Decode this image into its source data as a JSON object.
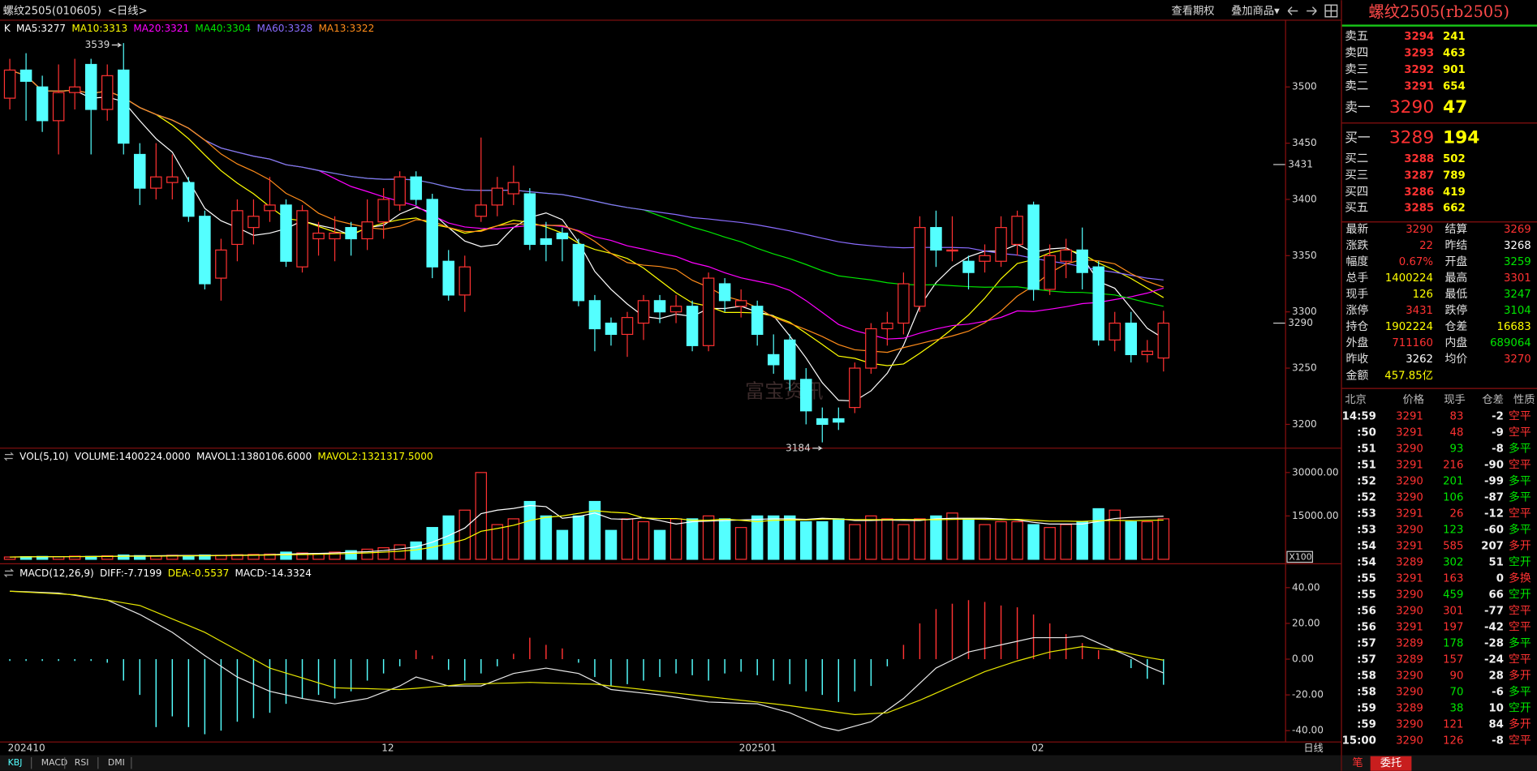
{
  "header": {
    "title": "螺纹2505(010605)",
    "period": "<日线>",
    "buttons": [
      "查看期权",
      "叠加商品▾"
    ]
  },
  "chart_data": [
    {
      "type": "candlestick",
      "indicators": [
        {
          "label": "K",
          "color": "#ffffff"
        },
        {
          "label": "MA5:3277",
          "color": "#ffffff"
        },
        {
          "label": "MA10:3313",
          "color": "#ffff00"
        },
        {
          "label": "MA20:3321",
          "color": "#ff00ff"
        },
        {
          "label": "MA40:3304",
          "color": "#00e600"
        },
        {
          "label": "MA60:3328",
          "color": "#8a6cff"
        },
        {
          "label": "MA13:3322",
          "color": "#ff8c1a"
        }
      ],
      "categories": [
        "202410",
        null,
        null,
        null,
        null,
        null,
        null,
        null,
        null,
        null,
        null,
        null,
        null,
        null,
        null,
        null,
        null,
        null,
        null,
        null,
        null,
        null,
        null,
        "12",
        null,
        null,
        null,
        null,
        null,
        null,
        null,
        null,
        null,
        null,
        null,
        null,
        null,
        null,
        null,
        null,
        null,
        null,
        null,
        null,
        null,
        "202501",
        null,
        null,
        null,
        null,
        null,
        null,
        null,
        null,
        null,
        null,
        null,
        null,
        null,
        null,
        null,
        null,
        null,
        "02",
        null,
        null,
        null,
        null,
        null,
        null,
        null,
        null
      ],
      "open": [
        3490,
        3515,
        3500,
        3470,
        3495,
        3520,
        3480,
        3515,
        3440,
        3410,
        3415,
        3415,
        3385,
        3330,
        3360,
        3375,
        3390,
        3395,
        3340,
        3365,
        3365,
        3375,
        3365,
        3380,
        3395,
        3420,
        3400,
        3345,
        3315,
        3385,
        3395,
        3405,
        3405,
        3365,
        3370,
        3360,
        3310,
        3290,
        3280,
        3290,
        3310,
        3300,
        3305,
        3270,
        3325,
        3305,
        3305,
        3262,
        3275,
        3240,
        3205,
        3205,
        3215,
        3250,
        3285,
        3290,
        3305,
        3375,
        3355,
        3345,
        3345,
        3345,
        3360,
        3395,
        3320,
        3345,
        3355,
        3340,
        3275,
        3290,
        3262,
        3259
      ],
      "high": [
        3525,
        3530,
        3510,
        3520,
        3525,
        3525,
        3520,
        3539,
        3450,
        3450,
        3440,
        3420,
        3390,
        3365,
        3400,
        3400,
        3420,
        3400,
        3395,
        3380,
        3385,
        3380,
        3400,
        3410,
        3425,
        3425,
        3405,
        3355,
        3350,
        3455,
        3420,
        3430,
        3410,
        3380,
        3375,
        3365,
        3315,
        3295,
        3300,
        3315,
        3315,
        3315,
        3310,
        3335,
        3330,
        3320,
        3310,
        3280,
        3280,
        3250,
        3215,
        3215,
        3255,
        3290,
        3300,
        3335,
        3385,
        3390,
        3385,
        3350,
        3360,
        3385,
        3390,
        3398,
        3360,
        3365,
        3375,
        3345,
        3300,
        3300,
        3275,
        3301
      ],
      "low": [
        3480,
        3470,
        3460,
        3440,
        3480,
        3440,
        3470,
        3440,
        3395,
        3400,
        3400,
        3380,
        3320,
        3310,
        3345,
        3360,
        3380,
        3340,
        3335,
        3350,
        3345,
        3350,
        3355,
        3365,
        3390,
        3395,
        3330,
        3310,
        3300,
        3380,
        3385,
        3395,
        3355,
        3345,
        3345,
        3305,
        3265,
        3270,
        3260,
        3275,
        3290,
        3290,
        3265,
        3265,
        3300,
        3295,
        3270,
        3245,
        3230,
        3200,
        3184,
        3195,
        3210,
        3245,
        3270,
        3280,
        3300,
        3340,
        3345,
        3320,
        3335,
        3340,
        3350,
        3310,
        3315,
        3330,
        3320,
        3270,
        3265,
        3255,
        3255,
        3247
      ],
      "close": [
        3515,
        3505,
        3470,
        3495,
        3500,
        3480,
        3510,
        3450,
        3410,
        3420,
        3420,
        3385,
        3325,
        3355,
        3390,
        3385,
        3395,
        3345,
        3390,
        3370,
        3370,
        3365,
        3380,
        3400,
        3420,
        3400,
        3340,
        3315,
        3340,
        3395,
        3410,
        3415,
        3360,
        3360,
        3365,
        3310,
        3285,
        3280,
        3295,
        3310,
        3300,
        3305,
        3270,
        3330,
        3310,
        3310,
        3280,
        3253,
        3240,
        3212,
        3200,
        3202,
        3250,
        3285,
        3290,
        3325,
        3375,
        3355,
        3355,
        3335,
        3350,
        3375,
        3385,
        3320,
        3350,
        3355,
        3335,
        3275,
        3290,
        3262,
        3265,
        3290
      ],
      "up_color": "#ff3232",
      "down_color": "#54ffff",
      "ylim": [
        3181,
        3558
      ],
      "yticks": [
        3200,
        3250,
        3300,
        3350,
        3400,
        3450,
        3500
      ],
      "max_label": 3539,
      "min_label": 3184,
      "price_markers": [
        3431,
        3290
      ],
      "watermark": "富宝资讯"
    },
    {
      "type": "bar",
      "indicators": [
        {
          "label": "VOL(5,10)",
          "color": "#ffffff"
        },
        {
          "label": "VOLUME:1400224.0000",
          "color": "#ffffff"
        },
        {
          "label": "MAVOL1:1380106.6000",
          "color": "#ffffff"
        },
        {
          "label": "MAVOL2:1321317.5000",
          "color": "#ffff00"
        }
      ],
      "values": [
        800,
        900,
        1000,
        900,
        1100,
        1000,
        1200,
        1500,
        1300,
        1200,
        1400,
        1300,
        1500,
        1400,
        1600,
        1700,
        1800,
        2500,
        2200,
        2000,
        2500,
        3000,
        3500,
        4000,
        5000,
        6000,
        11000,
        15000,
        17000,
        30000,
        12000,
        14000,
        20000,
        15000,
        10000,
        15000,
        20000,
        10000,
        14000,
        13000,
        10000,
        14000,
        14000,
        15000,
        14000,
        11000,
        15000,
        15000,
        15000,
        13000,
        13000,
        14000,
        12000,
        15000,
        14000,
        12000,
        14000,
        15000,
        16000,
        14000,
        12000,
        13000,
        13000,
        12000,
        11000,
        12000,
        13000,
        17500,
        17000,
        13000,
        13000,
        14002.24
      ],
      "ylim": [
        0,
        33000
      ],
      "yticks": [
        {
          "value": 15000,
          "label": "15000.00"
        },
        {
          "value": 30000,
          "label": "30000.00"
        }
      ],
      "unit_label": "X100"
    },
    {
      "type": "macd",
      "indicators": [
        {
          "label": "MACD(12,26,9)",
          "color": "#ffffff"
        },
        {
          "label": "DIFF:-7.7199",
          "color": "#ffffff"
        },
        {
          "label": "DEA:-0.5537",
          "color": "#ffff00"
        },
        {
          "label": "MACD:-14.3324",
          "color": "#ffffff"
        }
      ],
      "values": [
        -1,
        -1,
        -1,
        -1,
        -1,
        -1,
        -2,
        -12,
        -20,
        -38,
        -32,
        -38,
        -42,
        -40,
        -35,
        -33,
        -30,
        -25,
        -22,
        -20,
        -22,
        -18,
        -12,
        -8,
        -4,
        5,
        2,
        -6,
        -12,
        -8,
        -4,
        3,
        12,
        8,
        6,
        -2,
        -10,
        -15,
        -14,
        -12,
        -10,
        -8,
        -9,
        -12,
        -8,
        -7,
        -9,
        -12,
        -14,
        -18,
        -20,
        -24,
        -18,
        -15,
        -4,
        8,
        20,
        28,
        31,
        33,
        32,
        30,
        29,
        25,
        20,
        14,
        9,
        5,
        0,
        -5,
        -11,
        -14.3324
      ],
      "series": [
        {
          "name": "DIFF",
          "color": "#e8e8e8",
          "values": [
            38,
            37.7,
            37.3,
            37,
            35.7,
            34.3,
            33,
            29,
            25,
            20,
            15,
            8.5,
            2,
            -4,
            -10,
            -14,
            -18,
            -20,
            -22,
            -23.5,
            -25,
            -23.5,
            -22,
            -18.5,
            -15,
            -10,
            -12.5,
            -15,
            -15,
            -15,
            -11.5,
            -8,
            -6.5,
            -5,
            -6.5,
            -8,
            -12.5,
            -17,
            -18,
            -19,
            -20,
            -21.3,
            -22.7,
            -24,
            -24.3,
            -24.7,
            -25,
            -27.5,
            -30,
            -34,
            -38,
            -40,
            -37.5,
            -35,
            -28.5,
            -22,
            -13.5,
            -5,
            -0.5,
            4,
            6,
            8,
            10,
            12,
            12,
            12,
            13,
            9,
            5,
            1,
            -4,
            -7.7199
          ]
        },
        {
          "name": "DEA",
          "color": "#e6e600",
          "values": [
            38,
            37.5,
            37,
            36.5,
            36,
            34.5,
            33,
            31.5,
            30,
            26.3,
            22.5,
            18.8,
            15,
            10,
            5,
            0,
            -5,
            -7.8,
            -10.5,
            -13.3,
            -16,
            -16.3,
            -16.5,
            -16.8,
            -17,
            -16.3,
            -15.5,
            -14.8,
            -14,
            -13.8,
            -13.5,
            -13.3,
            -13,
            -13.3,
            -13.5,
            -13.8,
            -14,
            -15,
            -16,
            -17,
            -18,
            -19,
            -20,
            -21,
            -22,
            -23,
            -24,
            -25,
            -26,
            -27.3,
            -28.5,
            -29.8,
            -31,
            -30.5,
            -30,
            -26.5,
            -23,
            -19,
            -15,
            -11,
            -7,
            -4,
            -1,
            1.5,
            4,
            5.5,
            7,
            6,
            5,
            3,
            1,
            -0.5537
          ]
        }
      ],
      "up_color": "#ff3232",
      "down_color": "#54ffff",
      "ylim": [
        -45.5,
        52
      ],
      "yticks": [
        {
          "value": 40,
          "label": "40.00"
        },
        {
          "value": 20,
          "label": "20.00"
        },
        {
          "value": 0,
          "label": "0.00"
        },
        {
          "value": -20,
          "label": "-20.00"
        },
        {
          "value": -40,
          "label": "-40.00"
        }
      ]
    }
  ],
  "x_axis_period": "日线",
  "tabs": [
    "KBJ",
    "MACD",
    "RSI",
    "DMI"
  ],
  "quote": {
    "title": "螺纹2505(rb2505)",
    "asks": [
      {
        "label": "卖五",
        "price": 3294,
        "volume": 241
      },
      {
        "label": "卖四",
        "price": 3293,
        "volume": 463
      },
      {
        "label": "卖三",
        "price": 3292,
        "volume": 901
      },
      {
        "label": "卖二",
        "price": 3291,
        "volume": 654
      },
      {
        "label": "卖一",
        "price": 3290,
        "volume": 47
      }
    ],
    "bids": [
      {
        "label": "买一",
        "price": 3289,
        "volume": 194
      },
      {
        "label": "买二",
        "price": 3288,
        "volume": 502
      },
      {
        "label": "买三",
        "price": 3287,
        "volume": 789
      },
      {
        "label": "买四",
        "price": 3286,
        "volume": 419
      },
      {
        "label": "买五",
        "price": 3285,
        "volume": 662
      }
    ],
    "stats": [
      [
        {
          "label": "最新",
          "value": 3290,
          "color": "#ff3232"
        },
        {
          "label": "结算",
          "value": 3269,
          "color": "#ff3232"
        }
      ],
      [
        {
          "label": "涨跌",
          "value": 22,
          "color": "#ff3232"
        },
        {
          "label": "昨结",
          "value": 3268,
          "color": "#ffffff"
        }
      ],
      [
        {
          "label": "幅度",
          "value": "0.67%",
          "color": "#ff3232"
        },
        {
          "label": "开盘",
          "value": 3259,
          "color": "#00e600"
        }
      ],
      [
        {
          "label": "总手",
          "value": 1400224,
          "color": "#ffff00"
        },
        {
          "label": "最高",
          "value": 3301,
          "color": "#ff3232"
        }
      ],
      [
        {
          "label": "现手",
          "value": 126,
          "color": "#ffff00"
        },
        {
          "label": "最低",
          "value": 3247,
          "color": "#00e600"
        }
      ],
      [
        {
          "label": "涨停",
          "value": 3431,
          "color": "#ff3232"
        },
        {
          "label": "跌停",
          "value": 3104,
          "color": "#00e600"
        }
      ],
      [
        {
          "label": "持仓",
          "value": 1902224,
          "color": "#ffff00"
        },
        {
          "label": "仓差",
          "value": 16683,
          "color": "#ffff00"
        }
      ],
      [
        {
          "label": "外盘",
          "value": 711160,
          "color": "#ff3232"
        },
        {
          "label": "内盘",
          "value": 689064,
          "color": "#00e600"
        }
      ],
      [
        {
          "label": "昨收",
          "value": 3262,
          "color": "#ffffff"
        },
        {
          "label": "均价",
          "value": 3270,
          "color": "#ff3232"
        }
      ],
      [
        {
          "label": "金额",
          "value": "457.85亿",
          "color": "#ffff00"
        }
      ]
    ],
    "trades_header": [
      "北京",
      "价格",
      "现手",
      "仓差",
      "性质"
    ],
    "trades": [
      {
        "time": "14:59",
        "price": 3291,
        "volume": 83,
        "change": -2,
        "kind": "空平",
        "color": "#ff3232"
      },
      {
        "time": ":50",
        "price": 3291,
        "volume": 48,
        "change": -9,
        "kind": "空平",
        "color": "#ff3232"
      },
      {
        "time": ":51",
        "price": 3290,
        "volume": 93,
        "change": -8,
        "kind": "多平",
        "color": "#00e600"
      },
      {
        "time": ":51",
        "price": 3291,
        "volume": 216,
        "change": -90,
        "kind": "空平",
        "color": "#ff3232"
      },
      {
        "time": ":52",
        "price": 3290,
        "volume": 201,
        "change": -99,
        "kind": "多平",
        "color": "#00e600"
      },
      {
        "time": ":52",
        "price": 3290,
        "volume": 106,
        "change": -87,
        "kind": "多平",
        "color": "#00e600"
      },
      {
        "time": ":53",
        "price": 3291,
        "volume": 26,
        "change": -12,
        "kind": "空平",
        "color": "#ff3232"
      },
      {
        "time": ":53",
        "price": 3290,
        "volume": 123,
        "change": -60,
        "kind": "多平",
        "color": "#00e600"
      },
      {
        "time": ":54",
        "price": 3291,
        "volume": 585,
        "change": 207,
        "kind": "多开",
        "color": "#ff3232"
      },
      {
        "time": ":54",
        "price": 3289,
        "volume": 302,
        "change": 51,
        "kind": "空开",
        "color": "#00e600"
      },
      {
        "time": ":55",
        "price": 3291,
        "volume": 163,
        "change": 0,
        "kind": "多换",
        "color": "#ff3232"
      },
      {
        "time": ":55",
        "price": 3290,
        "volume": 459,
        "change": 66,
        "kind": "空开",
        "color": "#00e600"
      },
      {
        "time": ":56",
        "price": 3290,
        "volume": 301,
        "change": -77,
        "kind": "空平",
        "color": "#ff3232"
      },
      {
        "time": ":56",
        "price": 3291,
        "volume": 197,
        "change": -42,
        "kind": "空平",
        "color": "#ff3232"
      },
      {
        "time": ":57",
        "price": 3289,
        "volume": 178,
        "change": -28,
        "kind": "多平",
        "color": "#00e600"
      },
      {
        "time": ":57",
        "price": 3289,
        "volume": 157,
        "change": -24,
        "kind": "空平",
        "color": "#ff3232"
      },
      {
        "time": ":58",
        "price": 3290,
        "volume": 90,
        "change": 28,
        "kind": "多开",
        "color": "#ff3232"
      },
      {
        "time": ":58",
        "price": 3290,
        "volume": 70,
        "change": -6,
        "kind": "多平",
        "color": "#00e600"
      },
      {
        "time": ":59",
        "price": 3289,
        "volume": 38,
        "change": 10,
        "kind": "空开",
        "color": "#00e600"
      },
      {
        "time": ":59",
        "price": 3290,
        "volume": 121,
        "change": 84,
        "kind": "多开",
        "color": "#ff3232"
      },
      {
        "time": "15:00",
        "price": 3290,
        "volume": 126,
        "change": -8,
        "kind": "空平",
        "color": "#ff3232"
      }
    ],
    "bottom_tabs": [
      "笔",
      "委托"
    ]
  }
}
